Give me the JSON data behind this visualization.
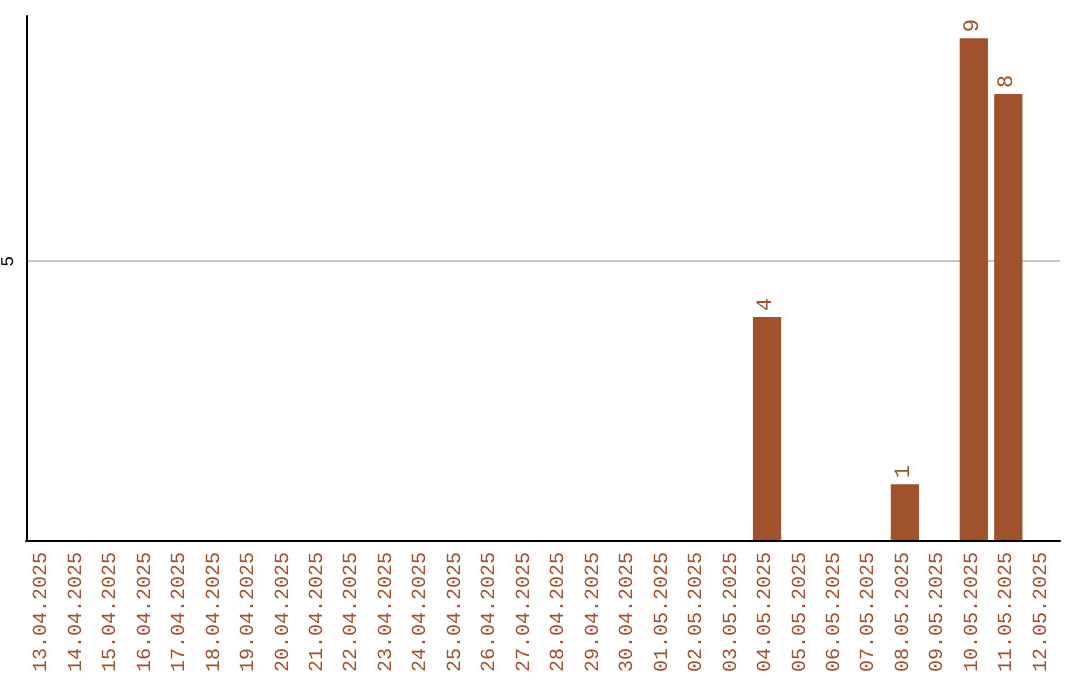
{
  "chart_data": {
    "type": "bar",
    "categories": [
      "13.04.2025",
      "14.04.2025",
      "15.04.2025",
      "16.04.2025",
      "17.04.2025",
      "18.04.2025",
      "19.04.2025",
      "20.04.2025",
      "21.04.2025",
      "22.04.2025",
      "23.04.2025",
      "24.04.2025",
      "25.04.2025",
      "26.04.2025",
      "27.04.2025",
      "28.04.2025",
      "29.04.2025",
      "30.04.2025",
      "01.05.2025",
      "02.05.2025",
      "03.05.2025",
      "04.05.2025",
      "05.05.2025",
      "06.05.2025",
      "07.05.2025",
      "08.05.2025",
      "09.05.2025",
      "10.05.2025",
      "11.05.2025",
      "12.05.2025"
    ],
    "values": [
      null,
      null,
      null,
      null,
      null,
      null,
      null,
      null,
      null,
      null,
      null,
      null,
      null,
      null,
      null,
      null,
      null,
      null,
      null,
      null,
      null,
      4,
      null,
      null,
      null,
      1,
      null,
      9,
      8,
      null
    ],
    "color": "#a0522d",
    "ylim": [
      0,
      9.4
    ],
    "yticks": [
      5
    ],
    "grid": "y",
    "data_labels": true
  }
}
